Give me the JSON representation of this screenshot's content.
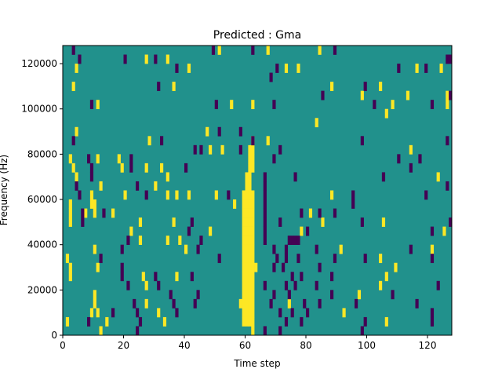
{
  "chart_data": {
    "type": "heatmap",
    "title": "Predicted : Gma",
    "xlabel": "Time step",
    "ylabel": "Frequency (Hz)",
    "xlim": [
      0,
      128
    ],
    "ylim": [
      0,
      128000
    ],
    "n_time_steps": 128,
    "n_freq_bins": 32,
    "xticks": [
      "0",
      "20",
      "40",
      "60",
      "80",
      "100",
      "120"
    ],
    "xtick_values": [
      0,
      20,
      40,
      60,
      80,
      100,
      120
    ],
    "yticks": [
      "0",
      "20000",
      "40000",
      "60000",
      "80000",
      "100000",
      "120000"
    ],
    "ytick_values": [
      0,
      20000,
      40000,
      60000,
      80000,
      100000,
      120000
    ],
    "colormap": "viridis",
    "values_legend": {
      "background": 0.5,
      "high": 1.0,
      "low": 0.0
    },
    "colors": {
      "background": "#21918c",
      "high": "#fde725",
      "low": "#440154"
    },
    "row_order": "top row = highest frequency bin",
    "high_cells_by_row": [
      [
        51,
        67,
        84
      ],
      [
        27,
        34
      ],
      [
        4,
        41,
        73,
        77,
        116,
        124
      ],
      [],
      [
        3,
        36,
        88,
        104
      ],
      [
        98,
        113,
        126
      ],
      [
        11,
        55,
        62,
        108,
        126
      ],
      [
        106
      ],
      [
        83
      ],
      [
        4,
        47
      ],
      [
        28,
        62,
        67
      ],
      [
        48,
        52,
        61,
        62,
        114
      ],
      [
        2,
        11,
        18,
        61,
        62
      ],
      [
        3,
        19,
        27,
        32,
        61,
        62
      ],
      [
        4,
        34,
        60,
        61,
        123
      ],
      [
        12,
        30,
        60,
        61
      ],
      [
        9,
        20,
        34,
        37,
        41,
        50,
        59,
        60,
        61,
        62,
        88
      ],
      [
        2,
        9,
        10,
        56,
        59,
        60,
        61,
        62
      ],
      [
        2,
        7,
        10,
        16,
        59,
        60,
        61,
        62,
        81
      ],
      [
        2,
        25,
        36,
        59,
        60,
        61,
        62,
        85,
        105
      ],
      [
        22,
        48,
        59,
        60,
        61,
        62,
        78,
        125
      ],
      [
        25,
        34,
        38,
        59,
        60,
        61,
        62
      ],
      [
        10,
        40,
        59,
        60,
        61,
        62,
        91,
        121
      ],
      [
        1,
        59,
        60,
        61,
        62,
        104
      ],
      [
        2,
        11,
        59,
        60,
        61,
        62,
        63,
        109
      ],
      [
        2,
        26,
        37,
        59,
        60,
        61,
        62,
        106
      ],
      [
        27,
        59,
        60,
        61,
        62,
        104
      ],
      [
        10,
        59,
        60,
        61,
        62,
        97
      ],
      [
        10,
        27,
        58,
        59,
        60,
        61,
        62,
        74
      ],
      [
        9,
        11,
        31,
        59,
        60,
        61,
        62,
        92
      ],
      [
        1,
        14,
        33,
        59,
        60,
        61,
        62,
        106
      ],
      [
        12,
        62
      ]
    ],
    "low_cells_by_row": [
      [
        3,
        49,
        62,
        89
      ],
      [
        5,
        20,
        30,
        126,
        127
      ],
      [
        37,
        70,
        110,
        119
      ],
      [
        68
      ],
      [
        31,
        99
      ],
      [
        85,
        127
      ],
      [
        9,
        50,
        69,
        102,
        121
      ],
      [],
      [],
      [
        51,
        58
      ],
      [
        3,
        32,
        62,
        98,
        126
      ],
      [
        43,
        45,
        58,
        71
      ],
      [
        8,
        22,
        69,
        110,
        117
      ],
      [
        9,
        22,
        40,
        114
      ],
      [
        9,
        66,
        76,
        105
      ],
      [
        4,
        24,
        66,
        126
      ],
      [
        5,
        27,
        54,
        66,
        95,
        119
      ],
      [
        66,
        95
      ],
      [
        6,
        13,
        66,
        78,
        84,
        89
      ],
      [
        6,
        42,
        66,
        71,
        98,
        127
      ],
      [
        41,
        66,
        80,
        121
      ],
      [
        21,
        45,
        66,
        74,
        75,
        76,
        77
      ],
      [
        19,
        44,
        69,
        73,
        83,
        114
      ],
      [
        12,
        51,
        70,
        73,
        77,
        89,
        99,
        121
      ],
      [
        19,
        69,
        72,
        84
      ],
      [
        19,
        30,
        42,
        75,
        78,
        88
      ],
      [
        21,
        31,
        66,
        73,
        76,
        83,
        123
      ],
      [
        35,
        44,
        69,
        74,
        88,
        108
      ],
      [
        23,
        36,
        43,
        68,
        79,
        84,
        96,
        116
      ],
      [
        16,
        24,
        37,
        71,
        75,
        80,
        121
      ],
      [
        8,
        25,
        73,
        78,
        99,
        121
      ],
      [
        24,
        66,
        71,
        98
      ]
    ]
  }
}
